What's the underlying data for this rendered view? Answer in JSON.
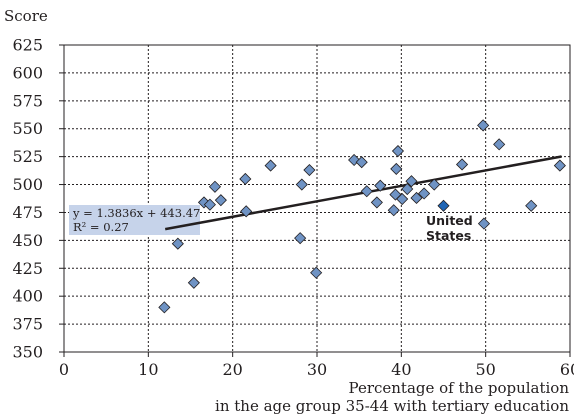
{
  "chart_data": {
    "type": "scatter",
    "ylabel": "Score",
    "xlabel_lines": [
      "Percentage of the population",
      "in the age group 35-44 with tertiary education"
    ],
    "xlim": [
      0,
      60
    ],
    "ylim": [
      350,
      625
    ],
    "x_ticks": [
      0,
      10,
      20,
      30,
      40,
      50,
      60
    ],
    "y_ticks": [
      350,
      375,
      400,
      425,
      450,
      475,
      500,
      525,
      550,
      575,
      600,
      625
    ],
    "grid": "dotted",
    "marker_color": "#6f93c4",
    "highlight_color": "#1e64b4",
    "line_color": "#231f20",
    "equation_box_color": "#c6d3ea",
    "regression": {
      "slope": 1.3836,
      "intercept": 443.47,
      "x_range": [
        12,
        59
      ],
      "equation": "y = 1.3836x + 443.47",
      "r2": "R² = 0.27"
    },
    "highlight_label_lines": [
      "United",
      "States"
    ],
    "highlight_point": [
      45,
      481
    ],
    "points": [
      [
        11.9,
        390
      ],
      [
        13.5,
        447
      ],
      [
        15.4,
        412
      ],
      [
        16.6,
        484
      ],
      [
        17.3,
        482
      ],
      [
        17.9,
        498
      ],
      [
        18.6,
        486
      ],
      [
        21.5,
        505
      ],
      [
        21.6,
        476
      ],
      [
        24.5,
        517
      ],
      [
        28.0,
        452
      ],
      [
        28.2,
        500
      ],
      [
        29.1,
        513
      ],
      [
        29.9,
        421
      ],
      [
        34.4,
        522
      ],
      [
        35.3,
        520
      ],
      [
        35.9,
        494
      ],
      [
        37.1,
        484
      ],
      [
        37.5,
        499
      ],
      [
        39.1,
        477
      ],
      [
        39.3,
        491
      ],
      [
        39.4,
        514
      ],
      [
        39.6,
        530
      ],
      [
        40.1,
        487
      ],
      [
        40.7,
        496
      ],
      [
        41.2,
        503
      ],
      [
        41.8,
        488
      ],
      [
        42.7,
        492
      ],
      [
        43.9,
        500
      ],
      [
        47.2,
        518
      ],
      [
        49.7,
        553
      ],
      [
        49.8,
        465
      ],
      [
        51.6,
        536
      ],
      [
        55.4,
        481
      ],
      [
        58.8,
        517
      ]
    ]
  }
}
